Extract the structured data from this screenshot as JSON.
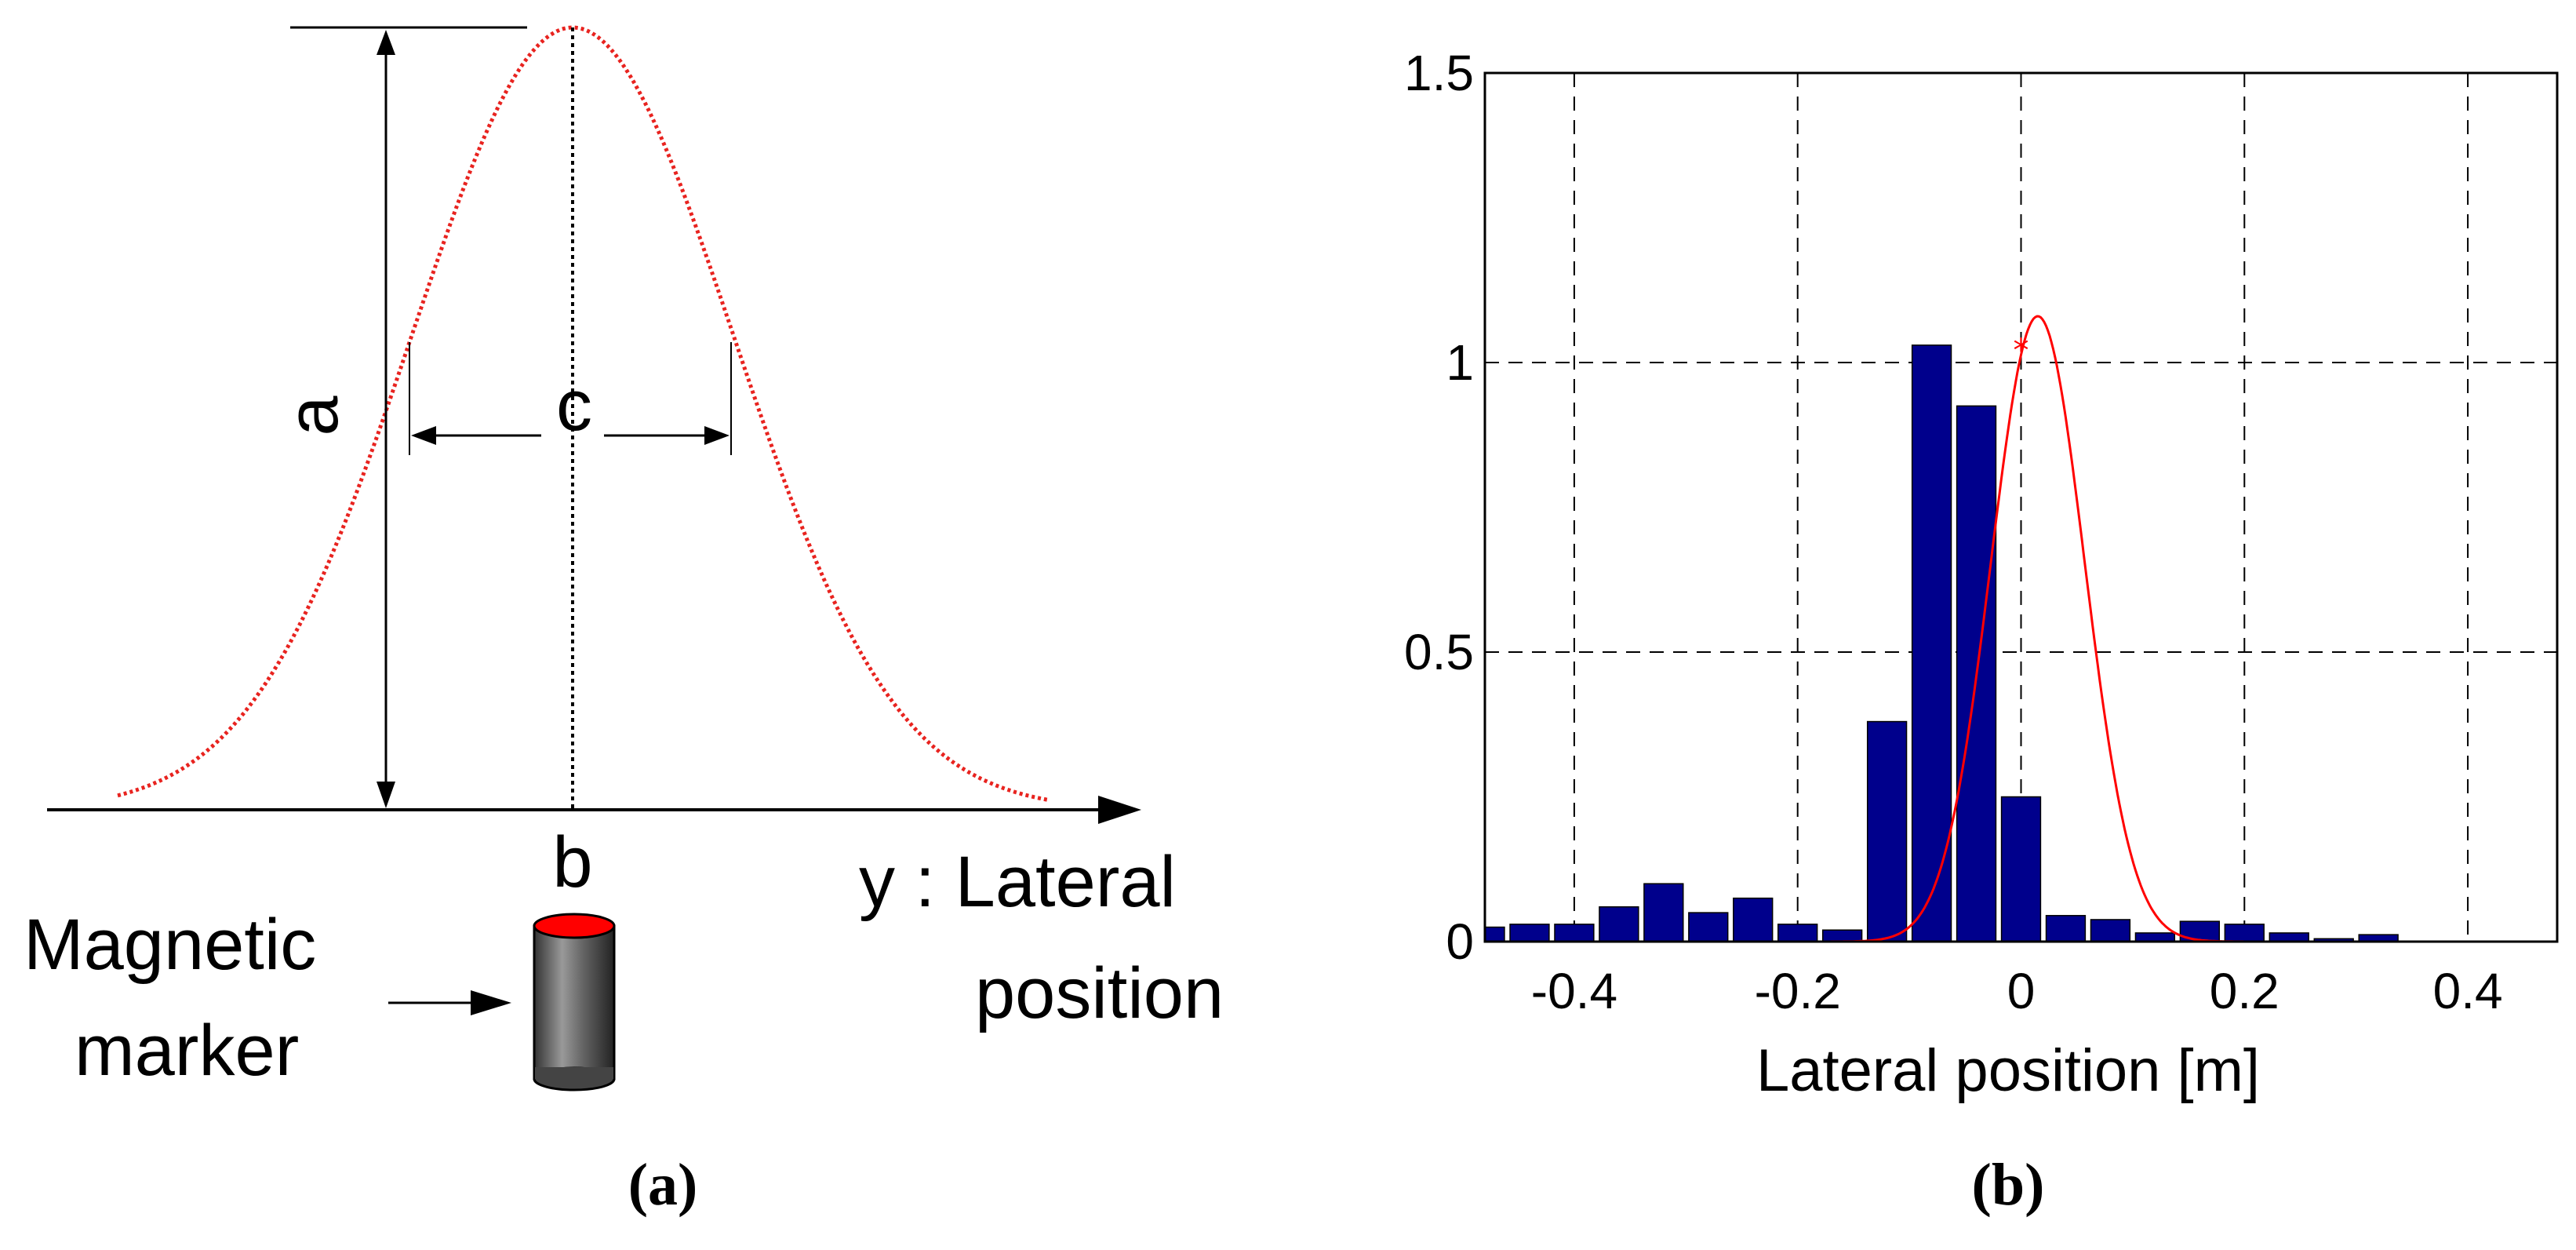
{
  "panel_a": {
    "caption": "(a)",
    "label_a": "a",
    "label_b": "b",
    "label_c": "c",
    "axis_label_line1": "y : Lateral",
    "axis_label_line2": "position",
    "marker_label_line1": "Magnetic",
    "marker_label_line2": "marker",
    "colors": {
      "curve": "#e8231f",
      "marker_top": "#ff0000",
      "marker_body": "#555555"
    }
  },
  "panel_b": {
    "caption": "(b)",
    "colors": {
      "bars": "#00008c",
      "fit": "#ff0000"
    }
  },
  "chart_data": {
    "type": "bar",
    "xlabel": "Lateral position [m]",
    "ylabel": "",
    "title": "",
    "xlim": [
      -0.48,
      0.48
    ],
    "ylim": [
      0,
      1.5
    ],
    "x_ticks": [
      -0.4,
      -0.2,
      0,
      0.2,
      0.4
    ],
    "x_tick_labels": [
      "-0.4",
      "-0.2",
      "0",
      "0.2",
      "0.4"
    ],
    "y_ticks": [
      0,
      0.5,
      1,
      1.5
    ],
    "y_tick_labels": [
      "0",
      "0.5",
      "1",
      "1.5"
    ],
    "grid": true,
    "bar_width": 0.035,
    "bars": {
      "x": [
        -0.48,
        -0.44,
        -0.4,
        -0.36,
        -0.32,
        -0.28,
        -0.24,
        -0.2,
        -0.16,
        -0.12,
        -0.08,
        -0.04,
        0.0,
        0.04,
        0.08,
        0.12,
        0.16,
        0.2,
        0.24,
        0.28,
        0.32,
        0.36,
        0.4,
        0.44,
        0.48
      ],
      "values": [
        0.025,
        0.03,
        0.03,
        0.06,
        0.1,
        0.05,
        0.075,
        0.03,
        0.02,
        0.38,
        1.03,
        0.925,
        0.25,
        0.045,
        0.038,
        0.015,
        0.035,
        0.03,
        0.015,
        0.005,
        0.012,
        0.0,
        0.0,
        0.0,
        0.0
      ]
    },
    "fit_curve": {
      "amplitude": 1.08,
      "center": 0.015,
      "sigma": 0.042
    },
    "peak_marker": {
      "x": 0.0,
      "y": 1.03,
      "symbol": "*"
    }
  }
}
